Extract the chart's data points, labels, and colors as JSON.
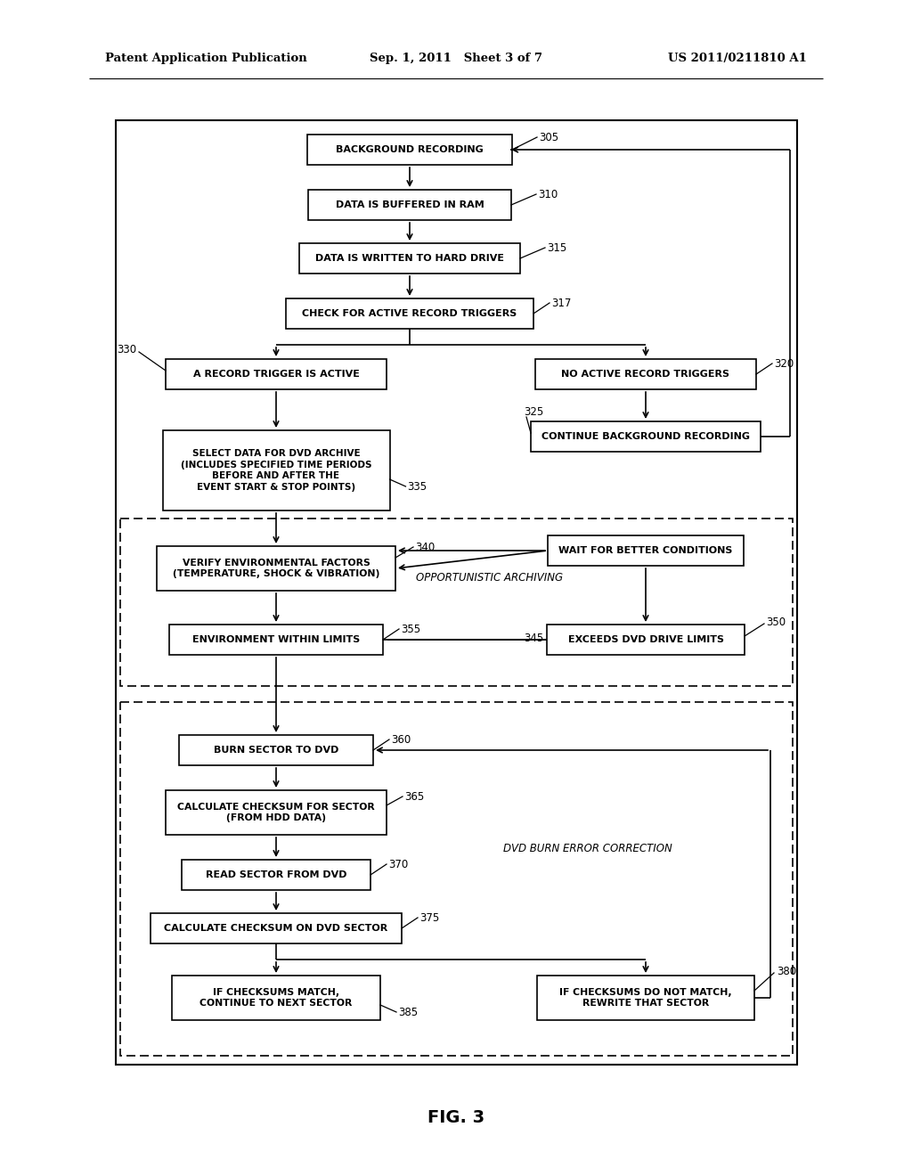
{
  "header_left": "Patent Application Publication",
  "header_mid": "Sep. 1, 2011   Sheet 3 of 7",
  "header_right": "US 2011/0211810 A1",
  "figure_label": "FIG. 3",
  "bg": "#ffffff"
}
